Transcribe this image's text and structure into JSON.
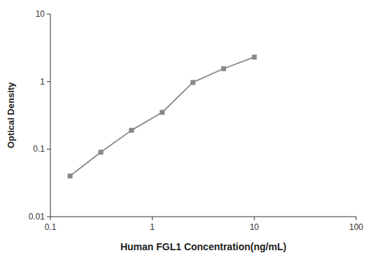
{
  "chart_data": {
    "type": "line",
    "x": [
      0.156,
      0.3125,
      0.625,
      1.25,
      2.5,
      5.0,
      10.0
    ],
    "values": [
      0.04,
      0.09,
      0.19,
      0.35,
      0.97,
      1.55,
      2.3
    ],
    "xlabel": "Human FGL1 Concentration(ng/mL)",
    "ylabel": "Optical Density",
    "xlim": [
      0.1,
      100
    ],
    "ylim": [
      0.01,
      10
    ],
    "xticks": [
      0.1,
      1,
      10,
      100
    ],
    "yticks": [
      0.01,
      0.1,
      1,
      10
    ],
    "log": true,
    "grid": false,
    "color": "#888888",
    "marker": "square"
  }
}
